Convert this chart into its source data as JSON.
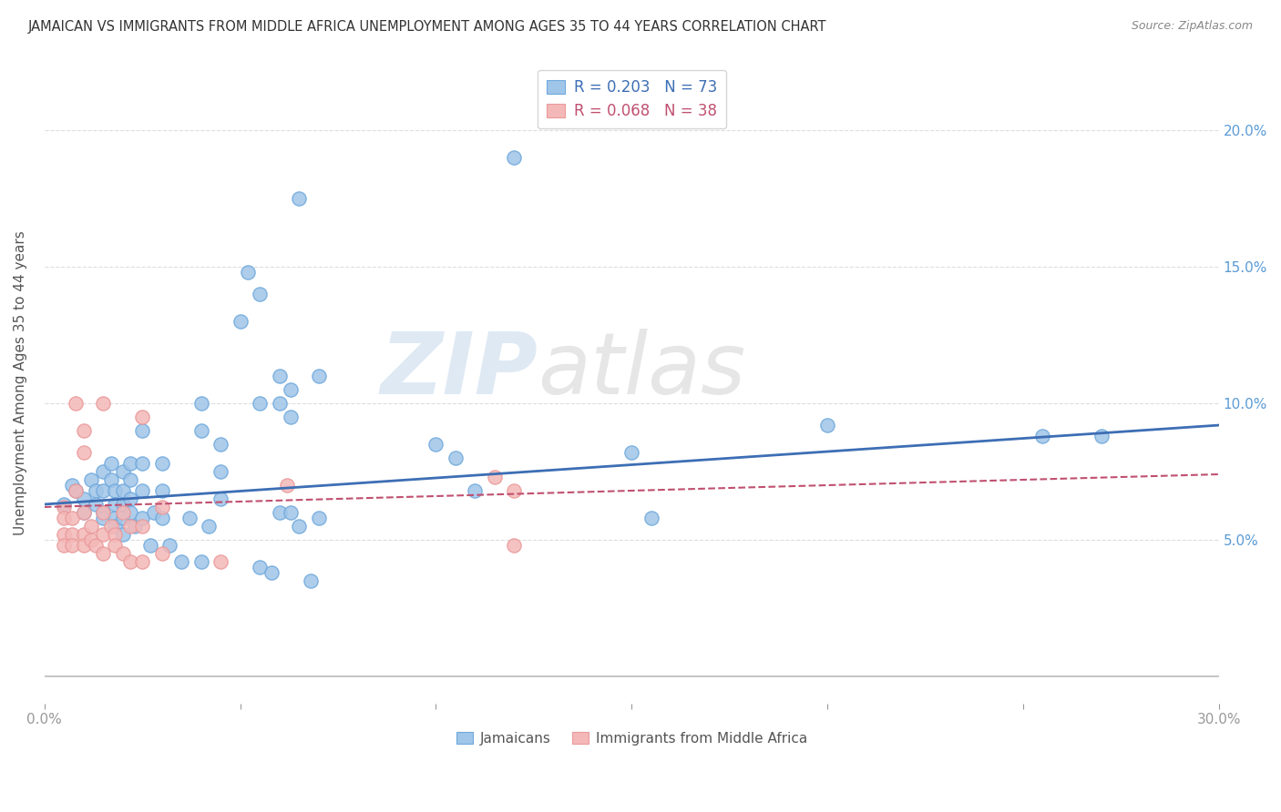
{
  "title": "JAMAICAN VS IMMIGRANTS FROM MIDDLE AFRICA UNEMPLOYMENT AMONG AGES 35 TO 44 YEARS CORRELATION CHART",
  "source": "Source: ZipAtlas.com",
  "ylabel": "Unemployment Among Ages 35 to 44 years",
  "xlim": [
    0.0,
    0.3
  ],
  "ylim": [
    -0.01,
    0.225
  ],
  "plot_ylim": [
    0.0,
    0.22
  ],
  "blue_color": "#9fc5e8",
  "blue_edge": "#6fa8dc",
  "pink_color": "#f4b8b8",
  "pink_edge": "#ea9999",
  "line_blue": "#3d6eb4",
  "line_pink": "#c05070",
  "background": "#ffffff",
  "legend_R_blue": "R = 0.203",
  "legend_N_blue": "N = 73",
  "legend_R_pink": "R = 0.068",
  "legend_N_pink": "N = 38",
  "legend_text_blue": "R = 0.203   N = 73",
  "legend_text_pink": "R = 0.068   N = 38",
  "watermark": "ZIPatlas",
  "blue_scatter": [
    [
      0.005,
      0.063
    ],
    [
      0.007,
      0.07
    ],
    [
      0.008,
      0.068
    ],
    [
      0.01,
      0.065
    ],
    [
      0.01,
      0.06
    ],
    [
      0.012,
      0.072
    ],
    [
      0.013,
      0.068
    ],
    [
      0.013,
      0.063
    ],
    [
      0.015,
      0.075
    ],
    [
      0.015,
      0.068
    ],
    [
      0.015,
      0.06
    ],
    [
      0.015,
      0.058
    ],
    [
      0.017,
      0.078
    ],
    [
      0.017,
      0.072
    ],
    [
      0.018,
      0.068
    ],
    [
      0.018,
      0.063
    ],
    [
      0.018,
      0.058
    ],
    [
      0.018,
      0.055
    ],
    [
      0.02,
      0.075
    ],
    [
      0.02,
      0.068
    ],
    [
      0.02,
      0.063
    ],
    [
      0.02,
      0.058
    ],
    [
      0.02,
      0.052
    ],
    [
      0.022,
      0.078
    ],
    [
      0.022,
      0.072
    ],
    [
      0.022,
      0.065
    ],
    [
      0.022,
      0.06
    ],
    [
      0.023,
      0.055
    ],
    [
      0.025,
      0.09
    ],
    [
      0.025,
      0.078
    ],
    [
      0.025,
      0.068
    ],
    [
      0.025,
      0.058
    ],
    [
      0.027,
      0.048
    ],
    [
      0.028,
      0.06
    ],
    [
      0.03,
      0.078
    ],
    [
      0.03,
      0.068
    ],
    [
      0.03,
      0.058
    ],
    [
      0.032,
      0.048
    ],
    [
      0.035,
      0.042
    ],
    [
      0.037,
      0.058
    ],
    [
      0.04,
      0.1
    ],
    [
      0.04,
      0.09
    ],
    [
      0.04,
      0.042
    ],
    [
      0.042,
      0.055
    ],
    [
      0.045,
      0.085
    ],
    [
      0.045,
      0.075
    ],
    [
      0.045,
      0.065
    ],
    [
      0.05,
      0.13
    ],
    [
      0.052,
      0.148
    ],
    [
      0.055,
      0.14
    ],
    [
      0.055,
      0.1
    ],
    [
      0.055,
      0.04
    ],
    [
      0.058,
      0.038
    ],
    [
      0.06,
      0.11
    ],
    [
      0.06,
      0.1
    ],
    [
      0.06,
      0.06
    ],
    [
      0.063,
      0.105
    ],
    [
      0.063,
      0.095
    ],
    [
      0.063,
      0.06
    ],
    [
      0.065,
      0.175
    ],
    [
      0.065,
      0.055
    ],
    [
      0.068,
      0.035
    ],
    [
      0.07,
      0.11
    ],
    [
      0.07,
      0.058
    ],
    [
      0.1,
      0.085
    ],
    [
      0.105,
      0.08
    ],
    [
      0.11,
      0.068
    ],
    [
      0.12,
      0.19
    ],
    [
      0.15,
      0.082
    ],
    [
      0.155,
      0.058
    ],
    [
      0.2,
      0.092
    ],
    [
      0.255,
      0.088
    ],
    [
      0.27,
      0.088
    ]
  ],
  "pink_scatter": [
    [
      0.005,
      0.062
    ],
    [
      0.005,
      0.058
    ],
    [
      0.005,
      0.052
    ],
    [
      0.005,
      0.048
    ],
    [
      0.007,
      0.058
    ],
    [
      0.007,
      0.052
    ],
    [
      0.007,
      0.048
    ],
    [
      0.008,
      0.1
    ],
    [
      0.008,
      0.068
    ],
    [
      0.01,
      0.09
    ],
    [
      0.01,
      0.082
    ],
    [
      0.01,
      0.06
    ],
    [
      0.01,
      0.052
    ],
    [
      0.01,
      0.048
    ],
    [
      0.012,
      0.055
    ],
    [
      0.012,
      0.05
    ],
    [
      0.013,
      0.048
    ],
    [
      0.015,
      0.1
    ],
    [
      0.015,
      0.06
    ],
    [
      0.015,
      0.052
    ],
    [
      0.015,
      0.045
    ],
    [
      0.017,
      0.055
    ],
    [
      0.018,
      0.052
    ],
    [
      0.018,
      0.048
    ],
    [
      0.02,
      0.06
    ],
    [
      0.02,
      0.045
    ],
    [
      0.022,
      0.055
    ],
    [
      0.022,
      0.042
    ],
    [
      0.025,
      0.095
    ],
    [
      0.025,
      0.055
    ],
    [
      0.025,
      0.042
    ],
    [
      0.03,
      0.062
    ],
    [
      0.03,
      0.045
    ],
    [
      0.045,
      0.042
    ],
    [
      0.062,
      0.07
    ],
    [
      0.115,
      0.073
    ],
    [
      0.12,
      0.068
    ],
    [
      0.12,
      0.048
    ]
  ],
  "blue_line_x": [
    0.0,
    0.3
  ],
  "blue_line_y": [
    0.063,
    0.092
  ],
  "pink_line_x": [
    0.0,
    0.3
  ],
  "pink_line_y": [
    0.062,
    0.074
  ]
}
